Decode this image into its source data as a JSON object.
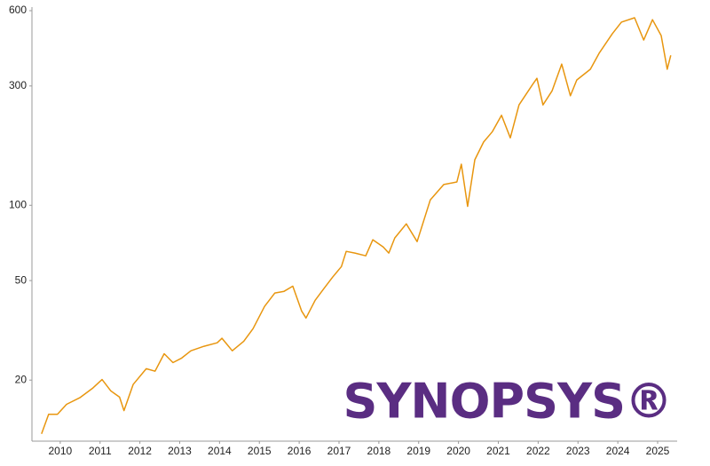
{
  "chart_data": {
    "type": "line",
    "x": [
      2009.53,
      2009.71,
      2009.93,
      2010.16,
      2010.49,
      2010.82,
      2011.05,
      2011.27,
      2011.49,
      2011.6,
      2011.83,
      2012.16,
      2012.38,
      2012.61,
      2012.83,
      2013.05,
      2013.28,
      2013.61,
      2013.94,
      2014.06,
      2014.32,
      2014.61,
      2014.84,
      2015.13,
      2015.39,
      2015.62,
      2015.84,
      2016.06,
      2016.17,
      2016.4,
      2016.62,
      2016.84,
      2017.06,
      2017.18,
      2017.4,
      2017.67,
      2017.85,
      2018.11,
      2018.25,
      2018.4,
      2018.69,
      2018.96,
      2019.29,
      2019.63,
      2019.96,
      2020.07,
      2020.23,
      2020.41,
      2020.63,
      2020.85,
      2021.08,
      2021.3,
      2021.52,
      2021.86,
      2021.97,
      2022.12,
      2022.35,
      2022.59,
      2022.81,
      2022.97,
      2023.31,
      2023.53,
      2023.86,
      2024.09,
      2024.42,
      2024.65,
      2024.87,
      2025.09,
      2025.24,
      2025.33
    ],
    "series": [
      {
        "color": "#e8960f",
        "values": [
          12.2,
          14.6,
          14.6,
          16.0,
          17.0,
          18.6,
          20.1,
          18.1,
          17.1,
          15.1,
          19.2,
          22.2,
          21.7,
          25.5,
          23.5,
          24.5,
          26.2,
          27.3,
          28.2,
          29.4,
          26.2,
          28.6,
          32.1,
          39.4,
          44.6,
          45.3,
          47.5,
          37.8,
          35.4,
          41.7,
          46.4,
          51.6,
          56.9,
          65.4,
          64.4,
          62.8,
          72.8,
          68.1,
          64.4,
          74.0,
          84.3,
          71.6,
          105,
          121,
          124,
          146,
          99,
          152,
          179,
          197,
          229,
          186,
          252,
          304,
          322,
          252,
          287,
          367,
          274,
          317,
          350,
          405,
          485,
          540,
          562,
          458,
          552,
          477,
          350,
          398
        ]
      }
    ],
    "xlim": [
      2009.29,
      2025.49
    ],
    "xticks": [
      2010,
      2011,
      2012,
      2013,
      2014,
      2015,
      2016,
      2017,
      2018,
      2019,
      2020,
      2021,
      2022,
      2023,
      2024,
      2025
    ],
    "ylim": [
      11.4,
      610
    ],
    "yticks": [
      20,
      50,
      100,
      300,
      600
    ],
    "log_y": true,
    "annotations": [
      "SYNOPSYS®"
    ]
  }
}
